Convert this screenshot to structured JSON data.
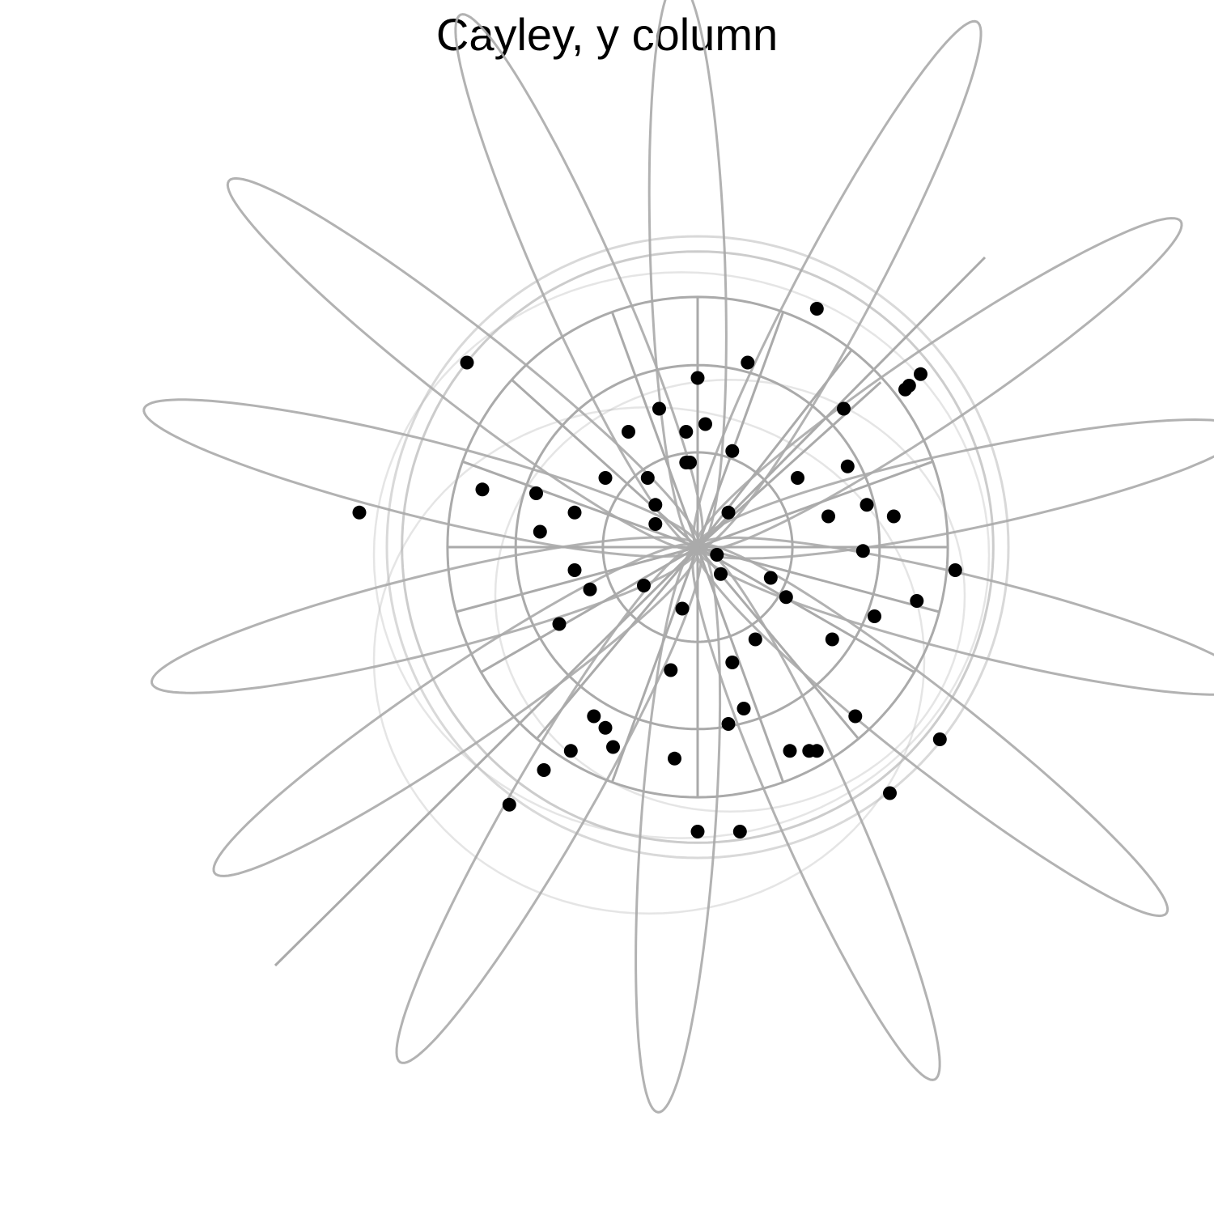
{
  "chart_data": {
    "type": "scatter",
    "title": "Cayley, y column",
    "projection": "stereographic (Cayley) plot of unit vectors, orthographic sphere view",
    "grid": true,
    "grid_color": "#aaaaaa",
    "point_color": "#000000",
    "series": [
      {
        "points": [
          [
            -0.4,
            -0.58
          ],
          [
            -0.24,
            -0.47
          ],
          [
            -0.06,
            -0.55
          ],
          [
            0.31,
            -0.53
          ],
          [
            0.67,
            -0.06
          ],
          [
            0.63,
            -0.5
          ],
          [
            0.44,
            0.11
          ],
          [
            0.54,
            0.41
          ],
          [
            0.35,
            -0.24
          ],
          [
            0.15,
            -0.24
          ],
          [
            0.34,
            0.08
          ],
          [
            0.43,
            -0.01
          ],
          [
            0.08,
            0.09
          ],
          [
            -0.6,
            0.48
          ],
          [
            0.38,
            0.36
          ],
          [
            -0.18,
            0.3
          ],
          [
            0.0,
            -0.74
          ],
          [
            0.11,
            -0.74
          ],
          [
            0.29,
            -0.53
          ],
          [
            0.12,
            -0.42
          ],
          [
            0.09,
            -0.3
          ],
          [
            -0.07,
            -0.32
          ],
          [
            -0.04,
            -0.16
          ],
          [
            -0.03,
            0.22
          ],
          [
            0.19,
            -0.08
          ],
          [
            -0.11,
            0.11
          ],
          [
            -0.11,
            0.06
          ],
          [
            -0.36,
            -0.2
          ],
          [
            -0.03,
            0.3
          ],
          [
            0.09,
            0.25
          ],
          [
            0.55,
            0.42
          ],
          [
            0.58,
            0.45
          ],
          [
            0.57,
            -0.14
          ],
          [
            0.51,
            0.08
          ],
          [
            0.46,
            -0.18
          ],
          [
            -0.49,
            -0.67
          ],
          [
            0.13,
            0.48
          ],
          [
            -0.1,
            0.36
          ],
          [
            -0.28,
            -0.11
          ],
          [
            -0.41,
            0.04
          ],
          [
            0.02,
            0.32
          ],
          [
            -0.32,
            -0.06
          ],
          [
            -0.24,
            0.18
          ],
          [
            -0.42,
            0.14
          ],
          [
            -0.32,
            0.09
          ],
          [
            -0.33,
            -0.53
          ],
          [
            -0.14,
            -0.1
          ],
          [
            0.24,
            -0.53
          ],
          [
            0.05,
            -0.02
          ],
          [
            -0.02,
            0.22
          ],
          [
            -0.27,
            -0.44
          ],
          [
            -0.22,
            -0.52
          ],
          [
            0.5,
            -0.64
          ],
          [
            0.41,
            -0.44
          ],
          [
            0.23,
            -0.13
          ],
          [
            0.26,
            0.18
          ],
          [
            0.08,
            -0.46
          ],
          [
            -0.56,
            0.15
          ],
          [
            -0.88,
            0.09
          ],
          [
            0.0,
            0.44
          ],
          [
            0.31,
            0.62
          ],
          [
            0.39,
            0.21
          ],
          [
            -0.13,
            0.18
          ],
          [
            0.06,
            -0.07
          ]
        ]
      }
    ]
  }
}
